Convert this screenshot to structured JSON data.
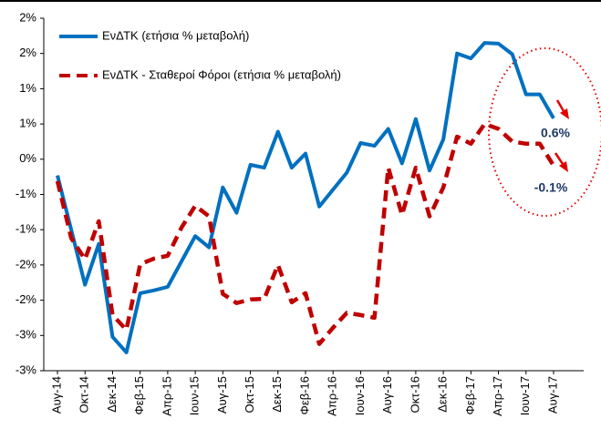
{
  "chart_data": {
    "type": "line",
    "categories": [
      "Αυγ-14",
      null,
      "Οκτ-14",
      null,
      "Δεκ-14",
      null,
      "Φεβ-15",
      null,
      "Απρ-15",
      null,
      "Ιουν-15",
      null,
      "Αυγ-15",
      null,
      "Οκτ-15",
      null,
      "Δεκ-15",
      null,
      "Φεβ-16",
      null,
      "Απρ-16",
      null,
      "Ιουν-16",
      null,
      "Αυγ-16",
      null,
      "Οκτ-16",
      null,
      "Δεκ-16",
      null,
      "Φεβ-17",
      null,
      "Απρ-17",
      null,
      "Ιουν-17",
      null,
      "Αυγ-17"
    ],
    "series": [
      {
        "name": "ΕνΔΤΚ (ετήσια % μεταβολή)",
        "color": "#0070c0",
        "dashed": false,
        "values": [
          -0.23,
          -1.0,
          -1.78,
          -1.2,
          -2.52,
          -2.74,
          -1.9,
          -1.86,
          -1.81,
          -1.45,
          -1.09,
          -1.25,
          -0.4,
          -0.76,
          -0.08,
          -0.12,
          0.39,
          -0.12,
          0.08,
          -0.67,
          -0.43,
          -0.19,
          0.23,
          0.19,
          0.43,
          -0.06,
          0.57,
          -0.16,
          0.28,
          1.5,
          1.43,
          1.65,
          1.64,
          1.49,
          0.92,
          0.92,
          0.58
        ]
      },
      {
        "name": "ΕνΔΤΚ - Σταθεροί Φόροι (ετήσια % μεταβολή)",
        "color": "#c00000",
        "dashed": true,
        "values": [
          -0.31,
          -1.12,
          -1.42,
          -0.88,
          -2.21,
          -2.42,
          -1.49,
          -1.41,
          -1.37,
          -0.97,
          -0.66,
          -0.81,
          -1.91,
          -2.04,
          -1.99,
          -1.98,
          -1.5,
          -2.03,
          -1.9,
          -2.62,
          -2.39,
          -2.18,
          -2.21,
          -2.25,
          -0.12,
          -0.79,
          -0.12,
          -0.81,
          -0.4,
          0.32,
          0.22,
          0.5,
          0.43,
          0.25,
          0.22,
          0.22,
          -0.09
        ]
      }
    ],
    "annotations": [
      {
        "text": "0.6%",
        "value": 0.6
      },
      {
        "text": "-0.1%",
        "value": -0.1
      }
    ],
    "ylim": [
      -3,
      2
    ],
    "yticks": [
      {
        "value": 2,
        "label": "2%"
      },
      {
        "value": 1.5,
        "label": "2%"
      },
      {
        "value": 1,
        "label": "1%"
      },
      {
        "value": 0.5,
        "label": "1%"
      },
      {
        "value": 0,
        "label": "0%"
      },
      {
        "value": -0.5,
        "label": "-1%"
      },
      {
        "value": -1,
        "label": "-1%"
      },
      {
        "value": -1.5,
        "label": "-2%"
      },
      {
        "value": -2,
        "label": "-2%"
      },
      {
        "value": -2.5,
        "label": "-3%"
      },
      {
        "value": -3,
        "label": "-3%"
      }
    ],
    "grid": false
  }
}
